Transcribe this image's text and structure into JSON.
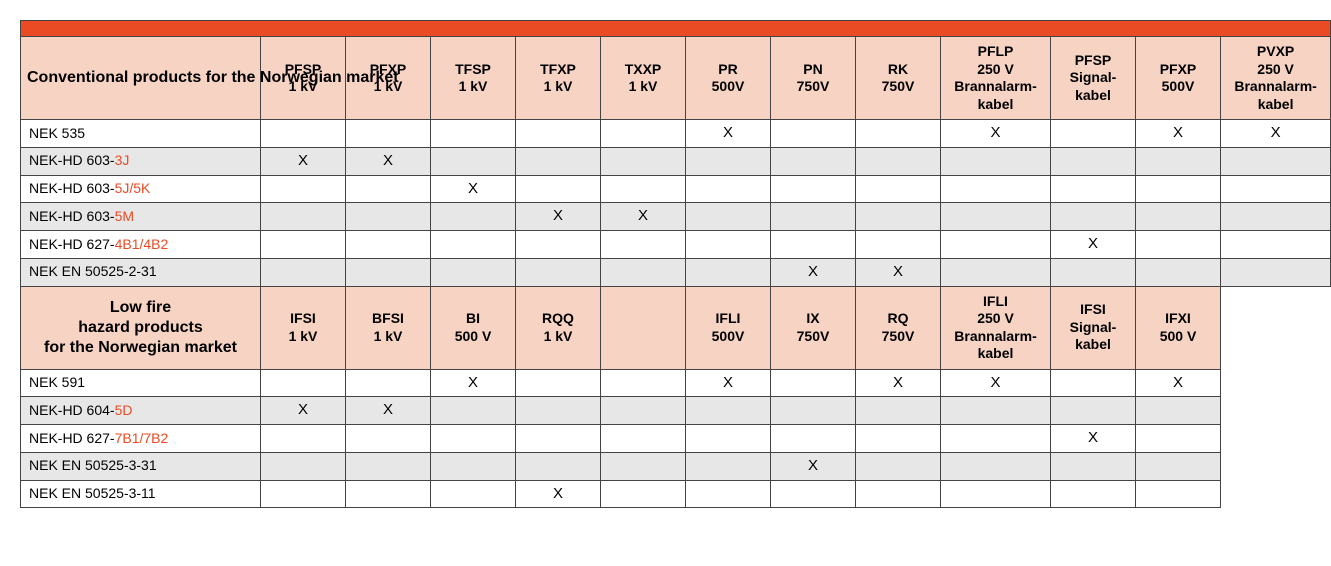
{
  "colors": {
    "orange_bar": "#ea4b25",
    "header_bg": "#f6d3c3",
    "row_alt": "#e7e7e7",
    "white": "#ffffff",
    "border": "#444444",
    "accent_text": "#ea4b25"
  },
  "mark": "X",
  "table1": {
    "title": "Conventional products for the Norwegian market",
    "columns": [
      [
        "PFSP",
        "1 kV"
      ],
      [
        "PFXP",
        "1 kV"
      ],
      [
        "TFSP",
        "1 kV"
      ],
      [
        "TFXP",
        "1 kV"
      ],
      [
        "TXXP",
        "1 kV"
      ],
      [
        "PR",
        "500V"
      ],
      [
        "PN",
        "750V"
      ],
      [
        "RK",
        "750V"
      ],
      [
        "PFLP",
        "250 V",
        "Brannalarm-",
        "kabel"
      ],
      [
        "PFSP",
        "Signal-",
        "kabel"
      ],
      [
        "PFXP",
        "500V"
      ],
      [
        "PVXP",
        "250 V",
        "Brannalarm-",
        "kabel"
      ]
    ],
    "rows": [
      {
        "label_plain": "NEK 535",
        "label_accent": "",
        "marks": [
          0,
          0,
          0,
          0,
          0,
          1,
          0,
          0,
          1,
          0,
          1,
          1
        ]
      },
      {
        "label_plain": "NEK-HD 603-",
        "label_accent": "3J",
        "marks": [
          1,
          1,
          0,
          0,
          0,
          0,
          0,
          0,
          0,
          0,
          0,
          0
        ]
      },
      {
        "label_plain": "NEK-HD 603-",
        "label_accent": "5J/5K",
        "marks": [
          0,
          0,
          1,
          0,
          0,
          0,
          0,
          0,
          0,
          0,
          0,
          0
        ]
      },
      {
        "label_plain": "NEK-HD 603-",
        "label_accent": "5M",
        "marks": [
          0,
          0,
          0,
          1,
          1,
          0,
          0,
          0,
          0,
          0,
          0,
          0
        ]
      },
      {
        "label_plain": "NEK-HD 627-",
        "label_accent": "4B1/4B2",
        "marks": [
          0,
          0,
          0,
          0,
          0,
          0,
          0,
          0,
          0,
          1,
          0,
          0
        ]
      },
      {
        "label_plain": "NEK EN 50525-2-31",
        "label_accent": "",
        "marks": [
          0,
          0,
          0,
          0,
          0,
          0,
          1,
          1,
          0,
          0,
          0,
          0
        ]
      }
    ]
  },
  "table2": {
    "title_l1": "Low fire",
    "title_l2": "hazard products",
    "title_l3": "for the Norwegian market",
    "columns": [
      [
        "IFSI",
        "1 kV"
      ],
      [
        "BFSI",
        "1 kV"
      ],
      [
        "BI",
        "500 V"
      ],
      [
        "RQQ",
        "1 kV"
      ],
      [
        ""
      ],
      [
        "IFLI",
        "500V"
      ],
      [
        "IX",
        "750V"
      ],
      [
        "RQ",
        "750V"
      ],
      [
        "IFLI",
        "250 V",
        "Brannalarm-",
        "kabel"
      ],
      [
        "IFSI",
        "Signal-",
        "kabel"
      ],
      [
        "IFXI",
        "500 V"
      ]
    ],
    "rows": [
      {
        "label_plain": "NEK 591",
        "label_accent": "",
        "marks": [
          0,
          0,
          1,
          0,
          0,
          1,
          0,
          1,
          1,
          0,
          1
        ]
      },
      {
        "label_plain": "NEK-HD 604-",
        "label_accent": "5D",
        "marks": [
          1,
          1,
          0,
          0,
          0,
          0,
          0,
          0,
          0,
          0,
          0
        ]
      },
      {
        "label_plain": "NEK-HD 627-",
        "label_accent": "7B1/7B2",
        "marks": [
          0,
          0,
          0,
          0,
          0,
          0,
          0,
          0,
          0,
          1,
          0
        ]
      },
      {
        "label_plain": "NEK EN 50525-3-31",
        "label_accent": "",
        "marks": [
          0,
          0,
          0,
          0,
          0,
          0,
          1,
          0,
          0,
          0,
          0
        ]
      },
      {
        "label_plain": "NEK EN 50525-3-11",
        "label_accent": "",
        "marks": [
          0,
          0,
          0,
          1,
          0,
          0,
          0,
          0,
          0,
          0,
          0
        ]
      }
    ]
  }
}
